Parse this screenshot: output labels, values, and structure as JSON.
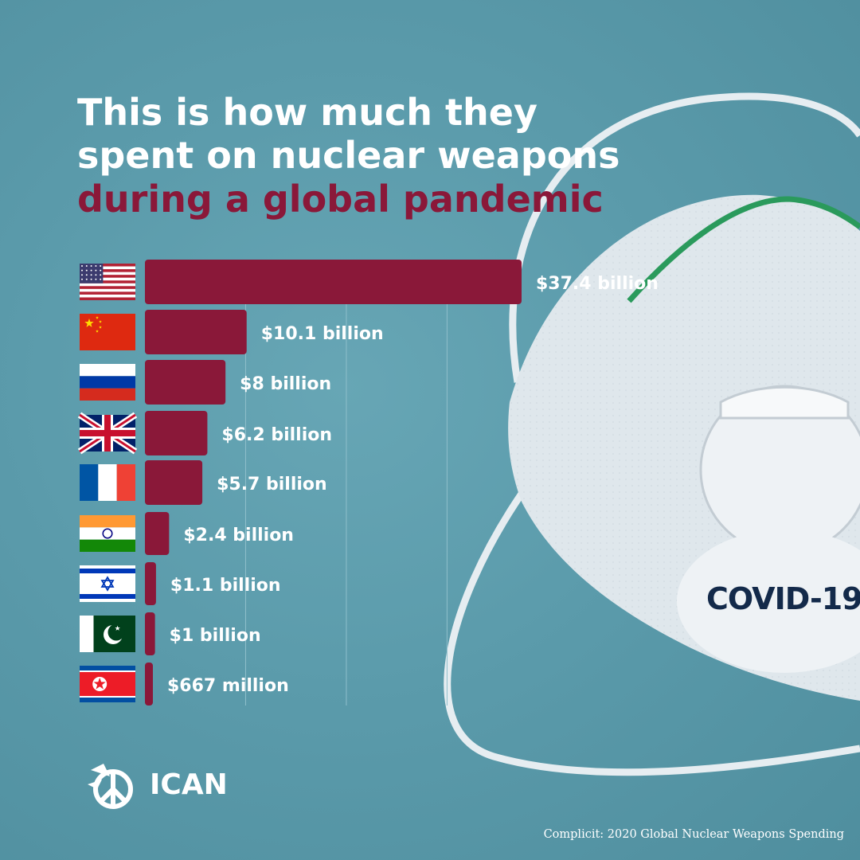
{
  "title": {
    "line1": "This is how much they",
    "line2": "spent on nuclear weapons",
    "line3": "during a global pandemic"
  },
  "colors": {
    "background": "#5b9bab",
    "bar": "#8a1839",
    "highlight_text": "#8a1839",
    "text": "#ffffff"
  },
  "mask": {
    "label": "COVID-19"
  },
  "logo": {
    "text": "ICAN",
    "icon": "dove-nuclear-symbol-icon"
  },
  "source": "Complicit: 2020 Global Nuclear Weapons Spending",
  "chart_data": {
    "type": "bar",
    "orientation": "horizontal",
    "unit": "USD",
    "categories": [
      "United States",
      "China",
      "Russia",
      "United Kingdom",
      "France",
      "India",
      "Israel",
      "Pakistan",
      "North Korea"
    ],
    "flags": [
      "flag-usa-icon",
      "flag-china-icon",
      "flag-russia-icon",
      "flag-uk-icon",
      "flag-france-icon",
      "flag-india-icon",
      "flag-israel-icon",
      "flag-pakistan-icon",
      "flag-north-korea-icon"
    ],
    "values": [
      37.4,
      10.1,
      8,
      6.2,
      5.7,
      2.4,
      1.1,
      1,
      0.667
    ],
    "value_labels": [
      "$37.4 billion",
      "$10.1 billion",
      "$8 billion",
      "$6.2 billion",
      "$5.7 billion",
      "$2.4 billion",
      "$1.1 billion",
      "$1 billion",
      "$667 million"
    ],
    "xlim": [
      0,
      40
    ],
    "grid": true,
    "legend": "none"
  }
}
